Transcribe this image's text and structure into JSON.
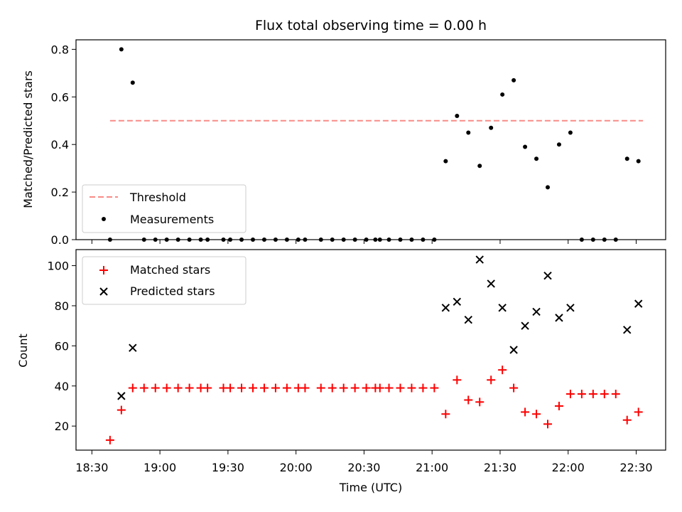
{
  "chart_data": [
    {
      "type": "scatter",
      "title": "Flux total observing time = 0.00 h",
      "xlabel": "",
      "ylabel": "Matched/Predicted stars",
      "xlim": [
        "18:23",
        "22:43"
      ],
      "ylim": [
        0,
        0.84
      ],
      "yticks": [
        0.0,
        0.2,
        0.4,
        0.6,
        0.8
      ],
      "ytick_labels": [
        "0.0",
        "0.2",
        "0.4",
        "0.6",
        "0.8"
      ],
      "legend_position": "lower-left",
      "series": [
        {
          "name": "Threshold",
          "kind": "dashed-line",
          "color": "#f88b87",
          "x": [
            "18:38",
            "22:33"
          ],
          "y": [
            0.5,
            0.5
          ]
        },
        {
          "name": "Measurements",
          "kind": "points",
          "color": "#000000",
          "x": [
            "18:38",
            "18:43",
            "18:48",
            "18:53",
            "18:58",
            "19:03",
            "19:08",
            "19:13",
            "19:18",
            "19:21",
            "19:28",
            "19:31",
            "19:36",
            "19:41",
            "19:46",
            "19:51",
            "19:56",
            "20:01",
            "20:04",
            "20:11",
            "20:16",
            "20:21",
            "20:26",
            "20:31",
            "20:35",
            "20:37",
            "20:41",
            "20:46",
            "20:51",
            "20:56",
            "21:01",
            "21:06",
            "21:11",
            "21:16",
            "21:21",
            "21:26",
            "21:31",
            "21:36",
            "21:41",
            "21:46",
            "21:51",
            "21:56",
            "22:01",
            "22:06",
            "22:11",
            "22:16",
            "22:21",
            "22:26",
            "22:31"
          ],
          "y": [
            0.0,
            0.8,
            0.66,
            0.0,
            0.0,
            0.0,
            0.0,
            0.0,
            0.0,
            0.0,
            0.0,
            0.0,
            0.0,
            0.0,
            0.0,
            0.0,
            0.0,
            0.0,
            0.0,
            0.0,
            0.0,
            0.0,
            0.0,
            0.0,
            0.0,
            0.0,
            0.0,
            0.0,
            0.0,
            0.0,
            0.0,
            0.33,
            0.52,
            0.45,
            0.31,
            0.47,
            0.61,
            0.67,
            0.39,
            0.34,
            0.22,
            0.4,
            0.45,
            0.0,
            0.0,
            0.0,
            0.0,
            0.34,
            0.33
          ]
        }
      ]
    },
    {
      "type": "scatter",
      "title": "",
      "xlabel": "Time (UTC)",
      "ylabel": "Count",
      "xlim": [
        "18:23",
        "22:43"
      ],
      "ylim": [
        8,
        108
      ],
      "yticks": [
        20,
        40,
        60,
        80,
        100
      ],
      "ytick_labels": [
        "20",
        "40",
        "60",
        "80",
        "100"
      ],
      "xticks": [
        "18:30",
        "19:00",
        "19:30",
        "20:00",
        "20:30",
        "21:00",
        "21:30",
        "22:00",
        "22:30"
      ],
      "legend_position": "upper-left",
      "series": [
        {
          "name": "Matched stars",
          "marker": "plus",
          "color": "#ff0000",
          "x": [
            "18:38",
            "18:43",
            "18:48",
            "18:53",
            "18:58",
            "19:03",
            "19:08",
            "19:13",
            "19:18",
            "19:21",
            "19:28",
            "19:31",
            "19:36",
            "19:41",
            "19:46",
            "19:51",
            "19:56",
            "20:01",
            "20:04",
            "20:11",
            "20:16",
            "20:21",
            "20:26",
            "20:31",
            "20:35",
            "20:37",
            "20:41",
            "20:46",
            "20:51",
            "20:56",
            "21:01",
            "21:06",
            "21:11",
            "21:16",
            "21:21",
            "21:26",
            "21:31",
            "21:36",
            "21:41",
            "21:46",
            "21:51",
            "21:56",
            "22:01",
            "22:06",
            "22:11",
            "22:16",
            "22:21",
            "22:26",
            "22:31"
          ],
          "y": [
            13,
            28,
            39,
            39,
            39,
            39,
            39,
            39,
            39,
            39,
            39,
            39,
            39,
            39,
            39,
            39,
            39,
            39,
            39,
            39,
            39,
            39,
            39,
            39,
            39,
            39,
            39,
            39,
            39,
            39,
            39,
            26,
            43,
            33,
            32,
            43,
            48,
            39,
            27,
            26,
            21,
            30,
            36,
            36,
            36,
            36,
            36,
            23,
            27
          ]
        },
        {
          "name": "Predicted stars",
          "marker": "x",
          "color": "#000000",
          "x": [
            "18:43",
            "18:48",
            "21:06",
            "21:11",
            "21:16",
            "21:21",
            "21:26",
            "21:31",
            "21:36",
            "21:41",
            "21:46",
            "21:51",
            "21:56",
            "22:01",
            "22:26",
            "22:31"
          ],
          "y": [
            35,
            59,
            79,
            82,
            73,
            103,
            91,
            79,
            58,
            70,
            77,
            95,
            74,
            79,
            68,
            81
          ]
        }
      ]
    }
  ]
}
